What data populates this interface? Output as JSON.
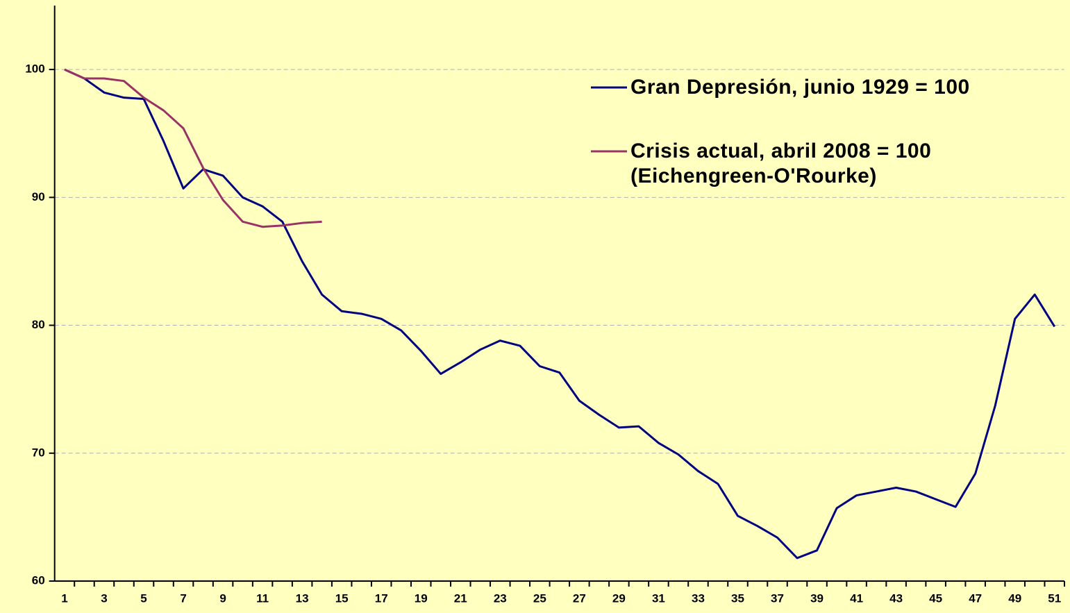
{
  "chart_data": {
    "type": "line",
    "categories": [
      "1",
      null,
      "3",
      null,
      "5",
      null,
      "7",
      null,
      "9",
      null,
      "11",
      null,
      "13",
      null,
      "15",
      null,
      "17",
      null,
      "19",
      null,
      "21",
      null,
      "23",
      null,
      "25",
      null,
      "27",
      null,
      "29",
      null,
      "31",
      null,
      "33",
      null,
      "35",
      null,
      "37",
      null,
      "39",
      null,
      "41",
      null,
      "43",
      null,
      "45",
      null,
      "47",
      null,
      "49",
      null,
      "51"
    ],
    "series": [
      {
        "name": "Gran Depresión, junio 1929 = 100",
        "color": "#000080",
        "values": [
          100,
          99.3,
          98.2,
          97.8,
          97.7,
          94.4,
          90.7,
          92.2,
          91.7,
          90.0,
          89.3,
          88.1,
          85.0,
          82.4,
          81.1,
          80.9,
          80.5,
          79.6,
          78.0,
          76.2,
          77.1,
          78.1,
          78.8,
          78.4,
          76.8,
          76.3,
          74.1,
          73.0,
          72.0,
          72.1,
          70.8,
          69.9,
          68.6,
          67.6,
          65.1,
          64.3,
          63.4,
          61.8,
          62.4,
          65.7,
          66.7,
          67.0,
          67.3,
          67.0,
          66.4,
          65.8,
          68.4,
          73.7,
          80.5,
          82.4,
          79.9
        ]
      },
      {
        "name": "Crisis actual, abril 2008 = 100 (Eichengreen-O'Rourke)",
        "color": "#993366",
        "values": [
          100,
          99.3,
          99.3,
          99.1,
          97.8,
          96.8,
          95.4,
          92.3,
          89.8,
          88.1,
          87.7,
          87.8,
          88.0,
          88.1,
          null,
          null,
          null,
          null,
          null,
          null,
          null,
          null,
          null,
          null,
          null,
          null,
          null,
          null,
          null,
          null,
          null,
          null,
          null,
          null,
          null,
          null,
          null,
          null,
          null,
          null,
          null,
          null,
          null,
          null,
          null,
          null,
          null,
          null,
          null,
          null,
          null
        ]
      }
    ],
    "ylim": [
      60,
      105
    ],
    "yticks": [
      60,
      70,
      80,
      90,
      100
    ],
    "grid": true,
    "legend": "top-right"
  }
}
